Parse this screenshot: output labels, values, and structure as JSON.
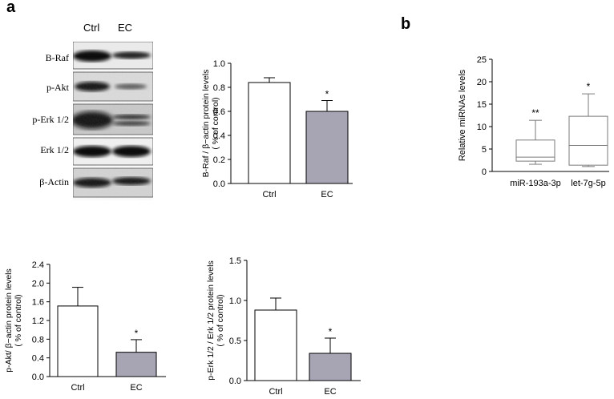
{
  "panels": {
    "a": "a",
    "b": "b"
  },
  "blot": {
    "columns": [
      "Ctrl",
      "EC"
    ],
    "lanes": [
      "B-Raf",
      "p-Akt",
      "p-Erk 1/2",
      "Erk 1/2",
      "β-Actin"
    ]
  },
  "colors": {
    "ctrl_bar": "#ffffff",
    "ec_bar": "#a7a4b4",
    "axis": "#000000",
    "box": "#7a7a7a"
  },
  "chart_data": [
    {
      "id": "braf",
      "type": "bar",
      "categories": [
        "Ctrl",
        "EC"
      ],
      "values": [
        0.84,
        0.6
      ],
      "errors": [
        0.04,
        0.09
      ],
      "significance": [
        "",
        "*"
      ],
      "ylabel": "B-Raf / β−actin protein levels\n( % of control)",
      "ylim": [
        0,
        1.0
      ],
      "yticks": [
        "0.0",
        "0.2",
        "0.4",
        "0.6",
        "0.8",
        "1.0"
      ]
    },
    {
      "id": "pakt",
      "type": "bar",
      "categories": [
        "Ctrl",
        "EC"
      ],
      "values": [
        1.51,
        0.52
      ],
      "errors": [
        0.4,
        0.27
      ],
      "significance": [
        "",
        "*"
      ],
      "ylabel": "p-Akt/ β−actin protein levels\n( % of control)",
      "ylim": [
        0,
        2.4
      ],
      "yticks": [
        "0.0",
        "0.4",
        "0.8",
        "1.2",
        "1.6",
        "2.0",
        "2.4"
      ]
    },
    {
      "id": "perk",
      "type": "bar",
      "categories": [
        "Ctrl",
        "EC"
      ],
      "values": [
        0.88,
        0.34
      ],
      "errors": [
        0.15,
        0.19
      ],
      "significance": [
        "",
        "*"
      ],
      "ylabel": "p-Erk 1/2 / Erk 1/2 protein levels\n( % of control)",
      "ylim": [
        0,
        1.5
      ],
      "yticks": [
        "0.0",
        "0.5",
        "1.0",
        "1.5"
      ]
    },
    {
      "id": "mirna",
      "type": "box",
      "categories": [
        "miR-193a-3p",
        "let-7g-5p"
      ],
      "boxes": [
        {
          "min": 1.6,
          "q1": 2.3,
          "median": 3.2,
          "q3": 7.0,
          "max": 11.4
        },
        {
          "min": 1.1,
          "q1": 1.4,
          "median": 5.8,
          "q3": 12.3,
          "max": 17.3
        }
      ],
      "significance": [
        "**",
        "*"
      ],
      "ylabel": "Relative miRNAs levels",
      "ylim": [
        0,
        25
      ],
      "yticks": [
        "0",
        "5",
        "10",
        "15",
        "20",
        "25"
      ]
    }
  ]
}
